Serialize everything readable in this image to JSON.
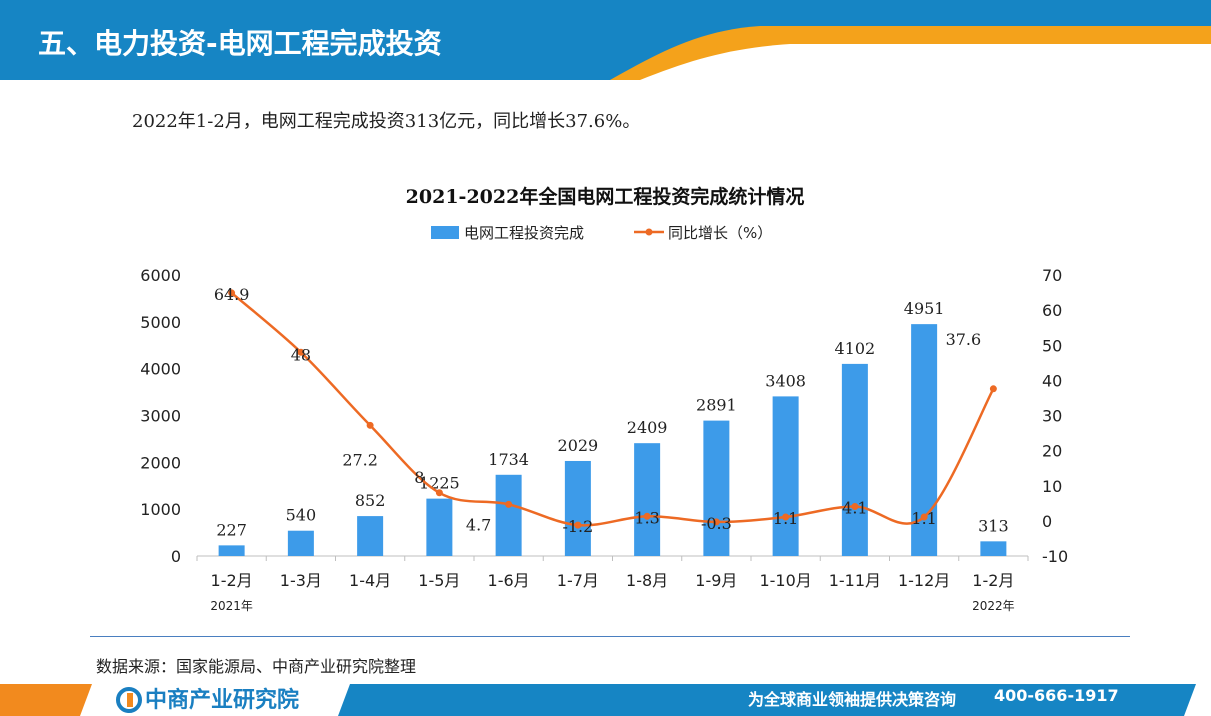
{
  "header": {
    "title": "五、电力投资-电网工程完成投资"
  },
  "summary": "2022年1-2月，电网工程完成投资313亿元，同比增长37.6%。",
  "chart_data": {
    "type": "bar",
    "title": "2021-2022年全国电网工程投资完成统计情况",
    "categories": [
      "1-2月",
      "1-3月",
      "1-4月",
      "1-5月",
      "1-6月",
      "1-7月",
      "1-8月",
      "1-9月",
      "1-10月",
      "1-11月",
      "1-12月",
      "1-2月"
    ],
    "year_labels": [
      {
        "index": 0,
        "label": "2021年"
      },
      {
        "index": 11,
        "label": "2022年"
      }
    ],
    "series": [
      {
        "name": "电网工程投资完成",
        "type": "bar",
        "axis": "left",
        "color": "#3d9be9",
        "values": [
          227,
          540,
          852,
          1225,
          1734,
          2029,
          2409,
          2891,
          3408,
          4102,
          4951,
          313
        ],
        "labels": [
          "227",
          "540",
          "852",
          "1225",
          "1734",
          "2029",
          "2409",
          "2891",
          "3408",
          "4102",
          "4951",
          "313"
        ]
      },
      {
        "name": "同比增长（%）",
        "type": "line",
        "axis": "right",
        "color": "#ed6a24",
        "values": [
          64.9,
          48,
          27.2,
          8,
          4.7,
          -1.2,
          1.3,
          -0.3,
          1.1,
          4.1,
          1.1,
          37.6
        ],
        "labels": [
          "64.9",
          "48",
          "27.2",
          "8",
          "4.7",
          "-1.2",
          "1.3",
          "-0.3",
          "1.1",
          "4.1",
          "1.1",
          "37.6"
        ]
      }
    ],
    "y_left": {
      "min": 0,
      "max": 6000,
      "ticks": [
        "0",
        "1000",
        "2000",
        "3000",
        "4000",
        "5000",
        "6000"
      ]
    },
    "y_right": {
      "min": -10,
      "max": 70,
      "ticks": [
        "-10",
        "0",
        "10",
        "20",
        "30",
        "40",
        "50",
        "60",
        "70"
      ]
    },
    "legend": "top",
    "grid": false
  },
  "source": "数据来源：国家能源局、中商产业研究院整理",
  "footer": {
    "brand": "中商产业研究院",
    "slogan": "为全球商业领袖提供决策咨询",
    "phone": "400-666-1917"
  }
}
